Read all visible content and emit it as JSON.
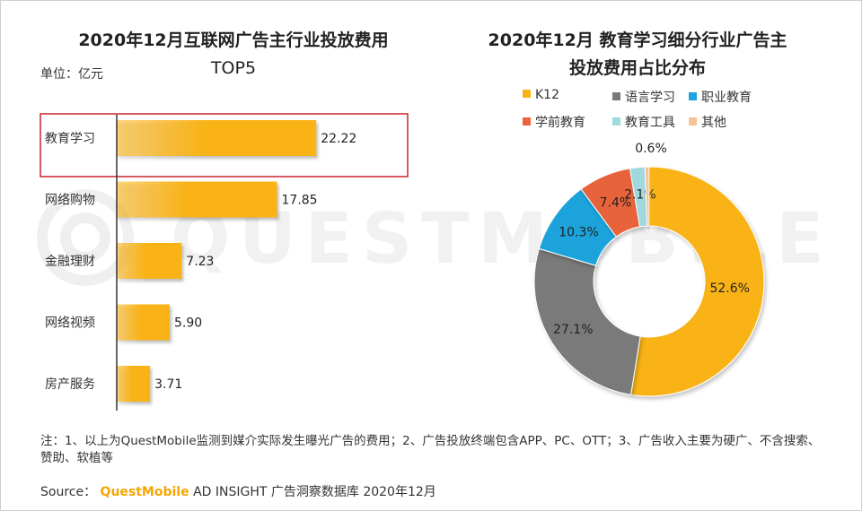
{
  "bar_chart": {
    "title_line1": "2020年12月互联网广告主行业投放费用",
    "title_line2": "TOP5",
    "unit": "单位：亿元"
  },
  "pie_chart": {
    "title_line1": "2020年12月 教育学习细分行业广告主",
    "title_line2": "投放费用占比分布"
  },
  "footnote": "注：1、以上为QuestMobile监测到媒介实际发生曝光广告的费用；2、广告投放终端包含APP、PC、OTT；3、广告收入主要为硬广、不含搜索、赞助、软植等",
  "source": {
    "label": "Source：",
    "brand": "QuestMobile",
    "text": "AD INSIGHT 广告洞察数据库 2020年12月"
  },
  "watermark_text": "QUESTMOBILE",
  "colors": {
    "bar": "#f9b319",
    "highlight_box": "#c8252c",
    "K12": "#f9b319",
    "语言学习": "#7a7a7a",
    "职业教育": "#1fa3dc",
    "学前教育": "#e8643a",
    "教育工具": "#9fd9dd",
    "其他": "#f6c398"
  },
  "chart_data": [
    {
      "type": "bar",
      "orientation": "horizontal",
      "title": "2020年12月互联网广告主行业投放费用TOP5",
      "ylabel": "单位：亿元",
      "categories": [
        "教育学习",
        "网络购物",
        "金融理财",
        "网络视频",
        "房产服务"
      ],
      "values": [
        22.22,
        17.85,
        7.23,
        5.9,
        3.71
      ],
      "value_labels": [
        "22.22",
        "17.85",
        "7.23",
        "5.90",
        "3.71"
      ],
      "highlighted_category": "教育学习",
      "xlim": [
        0,
        30
      ]
    },
    {
      "type": "pie",
      "variant": "donut",
      "title": "2020年12月 教育学习细分行业广告主投放费用占比分布",
      "legend_position": "top",
      "categories": [
        "K12",
        "语言学习",
        "职业教育",
        "学前教育",
        "教育工具",
        "其他"
      ],
      "values": [
        52.6,
        27.1,
        10.3,
        7.4,
        2.1,
        0.6
      ],
      "value_labels": [
        "52.6%",
        "27.1%",
        "10.3%",
        "7.4%",
        "2.1%",
        "0.6%"
      ]
    }
  ]
}
